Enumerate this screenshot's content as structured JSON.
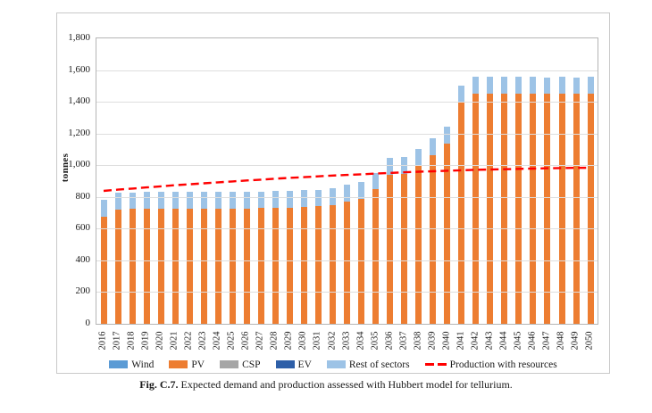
{
  "figure": {
    "caption_label": "Fig. C.7.",
    "caption_text": "Expected demand and production assessed with Hubbert model for tellurium."
  },
  "colors": {
    "wind": "#5B9BD5",
    "pv": "#ED7D31",
    "csp": "#A6A6A6",
    "ev": "#2E5FA8",
    "rest_of_sectors": "#9DC3E6",
    "production_line": "#FF0000"
  },
  "chart_data": {
    "type": "bar",
    "subtype": "stacked-bars-with-dashed-line",
    "title": "",
    "xlabel": "",
    "ylabel": "tonnes",
    "ylim": [
      0,
      1800
    ],
    "ytick_step": 200,
    "grid": true,
    "legend_position": "bottom",
    "categories": [
      "2016",
      "2017",
      "2018",
      "2019",
      "2020",
      "2021",
      "2022",
      "2023",
      "2024",
      "2025",
      "2026",
      "2027",
      "2028",
      "2029",
      "2030",
      "2031",
      "2032",
      "2033",
      "2034",
      "2035",
      "2036",
      "2037",
      "2038",
      "2039",
      "2040",
      "2041",
      "2042",
      "2043",
      "2044",
      "2045",
      "2046",
      "2047",
      "2048",
      "2049",
      "2050"
    ],
    "series": [
      {
        "name": "Wind",
        "color": "#5B9BD5",
        "values": [
          0,
          0,
          0,
          0,
          0,
          0,
          0,
          0,
          0,
          0,
          0,
          0,
          0,
          0,
          0,
          0,
          0,
          0,
          0,
          0,
          0,
          0,
          0,
          0,
          0,
          0,
          0,
          0,
          0,
          0,
          0,
          0,
          0,
          0,
          0
        ]
      },
      {
        "name": "PV",
        "color": "#ED7D31",
        "values": [
          675,
          722,
          724,
          725,
          725,
          725,
          726,
          726,
          727,
          727,
          728,
          729,
          731,
          734,
          737,
          741,
          750,
          770,
          789,
          848,
          941,
          947,
          996,
          1066,
          1137,
          1397,
          1454,
          1454,
          1454,
          1452,
          1453,
          1450,
          1452,
          1450,
          1452
        ]
      },
      {
        "name": "CSP",
        "color": "#A6A6A6",
        "values": [
          0,
          0,
          0,
          0,
          0,
          0,
          0,
          0,
          0,
          0,
          0,
          0,
          0,
          0,
          0,
          0,
          0,
          0,
          0,
          0,
          0,
          0,
          0,
          0,
          0,
          0,
          0,
          0,
          0,
          0,
          0,
          0,
          0,
          0,
          0
        ]
      },
      {
        "name": "EV",
        "color": "#2E5FA8",
        "values": [
          0,
          0,
          0,
          0,
          0,
          0,
          0,
          0,
          0,
          0,
          0,
          0,
          0,
          0,
          0,
          0,
          0,
          0,
          0,
          0,
          0,
          0,
          0,
          0,
          0,
          0,
          0,
          0,
          0,
          0,
          0,
          0,
          0,
          0,
          0
        ]
      },
      {
        "name": "Rest of sectors",
        "color": "#9DC3E6",
        "values": [
          105,
          105,
          105,
          105,
          105,
          105,
          105,
          105,
          105,
          105,
          105,
          105,
          105,
          105,
          105,
          105,
          105,
          105,
          105,
          105,
          105,
          105,
          105,
          105,
          105,
          105,
          105,
          105,
          105,
          105,
          105,
          105,
          105,
          105,
          105
        ]
      }
    ],
    "line_series": {
      "name": "Production with resources",
      "color": "#FF0000",
      "style": "dashed",
      "values": [
        838,
        846,
        853,
        860,
        867,
        874,
        880,
        886,
        892,
        898,
        904,
        909,
        915,
        920,
        925,
        930,
        935,
        939,
        943,
        947,
        951,
        955,
        959,
        962,
        965,
        968,
        971,
        973,
        975,
        977,
        979,
        981,
        982,
        983,
        984
      ]
    }
  }
}
